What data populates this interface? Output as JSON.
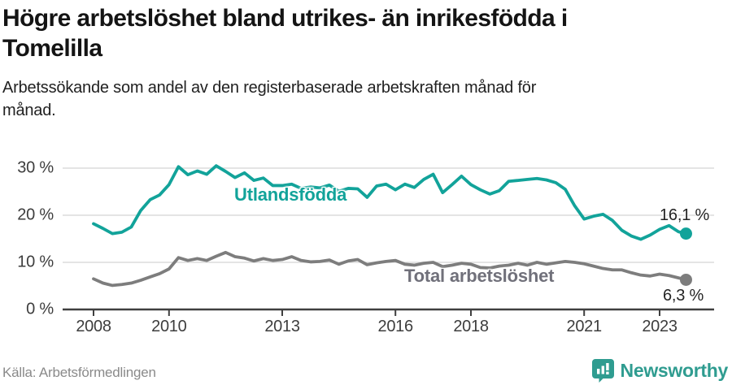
{
  "header": {
    "title_lines": [
      "Högre arbetslöshet bland utrikes- än inrikesfödda i",
      "Tomelilla"
    ],
    "subtitle_lines": [
      "Arbetssökande som andel av den registerbaserade arbetskraften månad för",
      "månad."
    ]
  },
  "footer": {
    "source": "Källa: Arbetsförmedlingen",
    "brand": "Newsworthy"
  },
  "colors": {
    "accent_teal": "#12a39a",
    "series_gray": "#7d7d7d",
    "grid": "#dcdcdc",
    "axis": "#3f3f3f",
    "brand_teal": "#2f9c90"
  },
  "chart_data": {
    "type": "line",
    "title": "Högre arbetslöshet bland utrikes- än inrikesfödda i Tomelilla",
    "subtitle": "Arbetssökande som andel av den registerbaserade arbetskraften månad för månad.",
    "xlabel": "",
    "ylabel": "",
    "grid": "horizontal",
    "legend": "inline-labels",
    "xlim": [
      2008,
      2023.7
    ],
    "ylim": [
      0,
      33
    ],
    "x_ticks": [
      2008,
      2010,
      2013,
      2016,
      2018,
      2021,
      2023
    ],
    "x_tick_labels": [
      "2008",
      "2010",
      "2013",
      "2016",
      "2018",
      "2021",
      "2023"
    ],
    "y_ticks": [
      0,
      10,
      20,
      30
    ],
    "y_tick_labels": [
      "0 %",
      "10 %",
      "20 %",
      "30 %"
    ],
    "x": [
      2008.0,
      2008.25,
      2008.5,
      2008.75,
      2009.0,
      2009.25,
      2009.5,
      2009.75,
      2010.0,
      2010.25,
      2010.5,
      2010.75,
      2011.0,
      2011.25,
      2011.5,
      2011.75,
      2012.0,
      2012.25,
      2012.5,
      2012.75,
      2013.0,
      2013.25,
      2013.5,
      2013.75,
      2014.0,
      2014.25,
      2014.5,
      2014.75,
      2015.0,
      2015.25,
      2015.5,
      2015.75,
      2016.0,
      2016.25,
      2016.5,
      2016.75,
      2017.0,
      2017.25,
      2017.5,
      2017.75,
      2018.0,
      2018.25,
      2018.5,
      2018.75,
      2019.0,
      2019.25,
      2019.5,
      2019.75,
      2020.0,
      2020.25,
      2020.5,
      2020.75,
      2021.0,
      2021.25,
      2021.5,
      2021.75,
      2022.0,
      2022.25,
      2022.5,
      2022.75,
      2023.0,
      2023.25,
      2023.5,
      2023.7
    ],
    "series": [
      {
        "name": "Utlandsfödda",
        "color": "#12a39a",
        "end_label": "16,1 %",
        "end_value": 16.1,
        "values": [
          18.2,
          17.2,
          16.1,
          16.4,
          17.5,
          21.0,
          23.3,
          24.3,
          26.5,
          30.3,
          28.6,
          29.4,
          28.7,
          30.5,
          29.3,
          28.0,
          29.0,
          27.4,
          27.9,
          26.3,
          26.3,
          26.6,
          25.7,
          26.0,
          25.8,
          26.4,
          25.1,
          25.7,
          25.6,
          23.8,
          26.2,
          26.6,
          25.4,
          26.6,
          25.9,
          27.6,
          28.7,
          24.8,
          26.5,
          28.3,
          26.5,
          25.4,
          24.5,
          25.2,
          27.2,
          27.4,
          27.6,
          27.8,
          27.5,
          26.9,
          25.5,
          22.0,
          19.2,
          19.8,
          20.2,
          18.9,
          16.8,
          15.6,
          14.9,
          15.8,
          17.0,
          17.8,
          16.5,
          16.1
        ]
      },
      {
        "name": "Total arbetslöshet",
        "color": "#7d7d7d",
        "end_label": "6,3 %",
        "end_value": 6.3,
        "values": [
          6.5,
          5.6,
          5.1,
          5.3,
          5.6,
          6.2,
          6.9,
          7.6,
          8.6,
          11.0,
          10.4,
          10.8,
          10.4,
          11.3,
          12.1,
          11.2,
          10.9,
          10.3,
          10.8,
          10.4,
          10.6,
          11.2,
          10.4,
          10.1,
          10.2,
          10.5,
          9.6,
          10.3,
          10.6,
          9.5,
          9.9,
          10.2,
          10.4,
          9.6,
          9.4,
          9.8,
          10.0,
          9.1,
          9.4,
          9.8,
          9.6,
          8.9,
          8.8,
          9.2,
          9.4,
          9.8,
          9.4,
          10.0,
          9.6,
          9.9,
          10.2,
          10.0,
          9.7,
          9.2,
          8.7,
          8.4,
          8.4,
          7.8,
          7.3,
          7.1,
          7.5,
          7.2,
          6.7,
          6.3
        ]
      }
    ]
  }
}
